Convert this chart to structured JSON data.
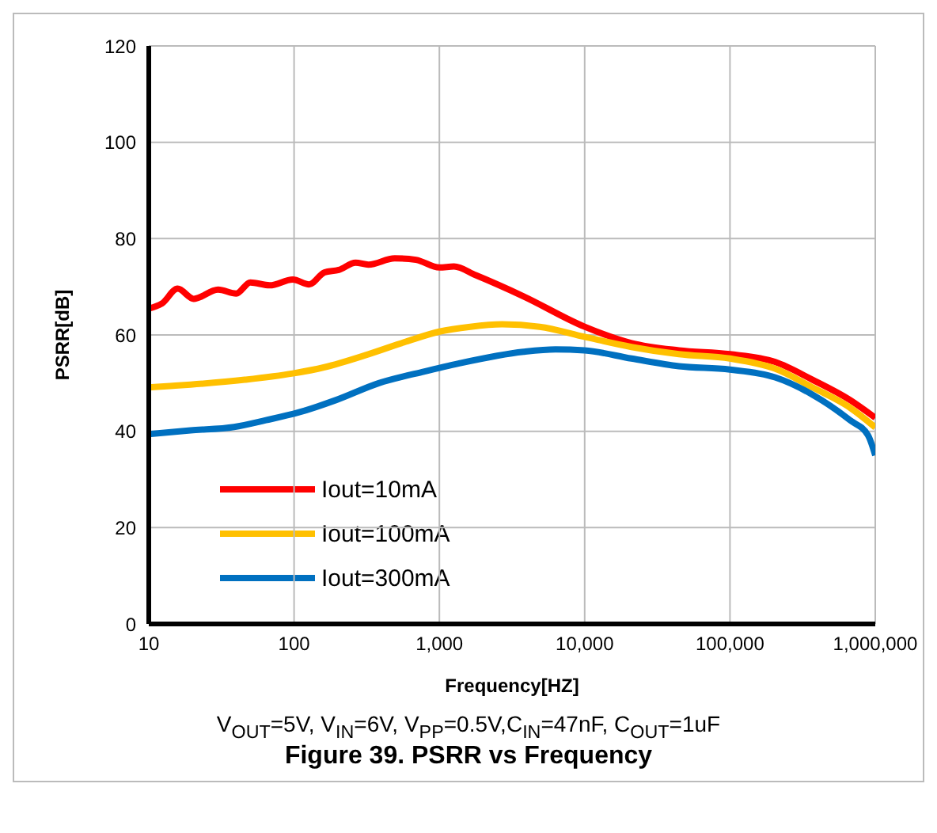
{
  "chart_data": {
    "type": "line",
    "title": "Figure 39. PSRR vs Frequency",
    "xlabel": "Frequency[HZ]",
    "ylabel": "PSRR[dB]",
    "annotations": [
      "V$_{OUT}$=5V, V$_{IN}$=6V, V$_{PP}$=0.5V,C$_{IN}$=47nF, C$_{OUT}$=1uF"
    ],
    "log": "x",
    "grid": true,
    "legend": "bottom left",
    "marker": "none",
    "line_style": "solid",
    "xlim": [
      10,
      1000000
    ],
    "xticks": [
      10,
      100,
      {
        "value": 1000,
        "label": "1,000"
      },
      {
        "value": 10000,
        "label": "10,000"
      },
      {
        "value": 100000,
        "label": "100,000"
      },
      {
        "value": 1000000,
        "label": "1,000,000"
      }
    ],
    "ylim": [
      0,
      120
    ],
    "yticks": [
      0,
      20,
      40,
      60,
      80,
      100,
      120
    ],
    "series": [
      {
        "name": "Iout=10mA",
        "color": "#ff0000",
        "x": [
          10,
          12.3,
          15.8,
          20.4,
          30,
          40,
          50,
          68,
          98,
          127,
          162,
          203,
          265,
          325,
          493,
          690,
          1000,
          1260,
          1780,
          3800,
          10000,
          21000,
          44500,
          100000,
          204000,
          370000,
          670000,
          1000000
        ],
        "values": [
          65.5,
          66.5,
          69.6,
          67.5,
          69.4,
          68.6,
          70.9,
          70.3,
          71.5,
          70.5,
          73,
          73.5,
          75,
          74.6,
          75.9,
          75.6,
          74,
          74.2,
          72.4,
          68,
          61.7,
          58.3,
          56.8,
          56,
          54.4,
          50.7,
          46.5,
          42.8
        ]
      },
      {
        "name": "Iout=100mA",
        "color": "#ffc000",
        "x": [
          10,
          14,
          19.4,
          45.8,
          98,
          162,
          325,
          588,
          1000,
          1630,
          2700,
          4900,
          10000,
          21000,
          44500,
          100000,
          204000,
          370000,
          670000,
          1000000
        ],
        "values": [
          49.1,
          49.4,
          49.7,
          50.7,
          52,
          53.3,
          56,
          58.6,
          60.7,
          61.7,
          62.2,
          61.7,
          59.6,
          57.5,
          56,
          55.1,
          53,
          49.1,
          44.9,
          40.8
        ]
      },
      {
        "name": "Iout=300mA",
        "color": "#0070c0",
        "x": [
          10,
          19.4,
          38.6,
          64,
          107,
          195,
          383,
          760,
          1370,
          3800,
          6300,
          10000,
          21000,
          44500,
          100000,
          204000,
          370000,
          670000,
          890000,
          1000000
        ],
        "values": [
          39.4,
          40.2,
          40.9,
          42.3,
          43.9,
          46.5,
          50,
          52.3,
          54.1,
          56.5,
          57,
          56.8,
          55.1,
          53.5,
          52.8,
          51.2,
          47.6,
          42.3,
          39.2,
          35
        ]
      }
    ]
  }
}
